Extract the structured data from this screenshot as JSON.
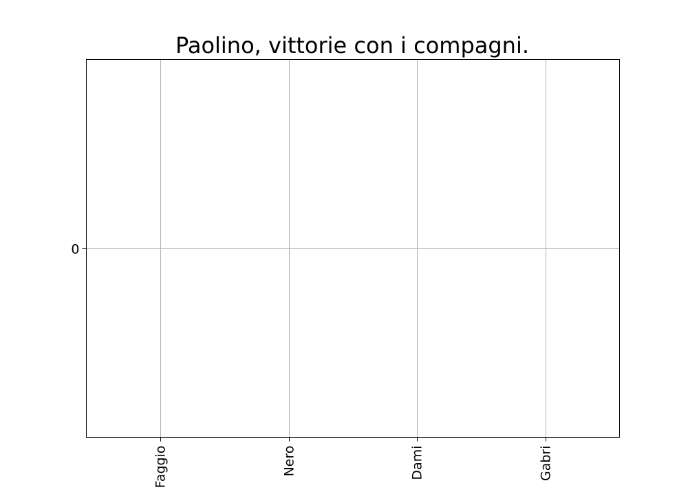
{
  "chart_data": {
    "type": "bar",
    "title": "Paolino, vittorie con i compagni.",
    "categories": [
      "Faggio",
      "Nero",
      "Dami",
      "Gabri"
    ],
    "values": [
      0,
      0,
      0,
      0
    ],
    "xlabel": "",
    "ylabel": "",
    "yticks": [
      0
    ],
    "ylim": [
      -1,
      1
    ],
    "grid": true,
    "xtick_rotation": 90
  }
}
